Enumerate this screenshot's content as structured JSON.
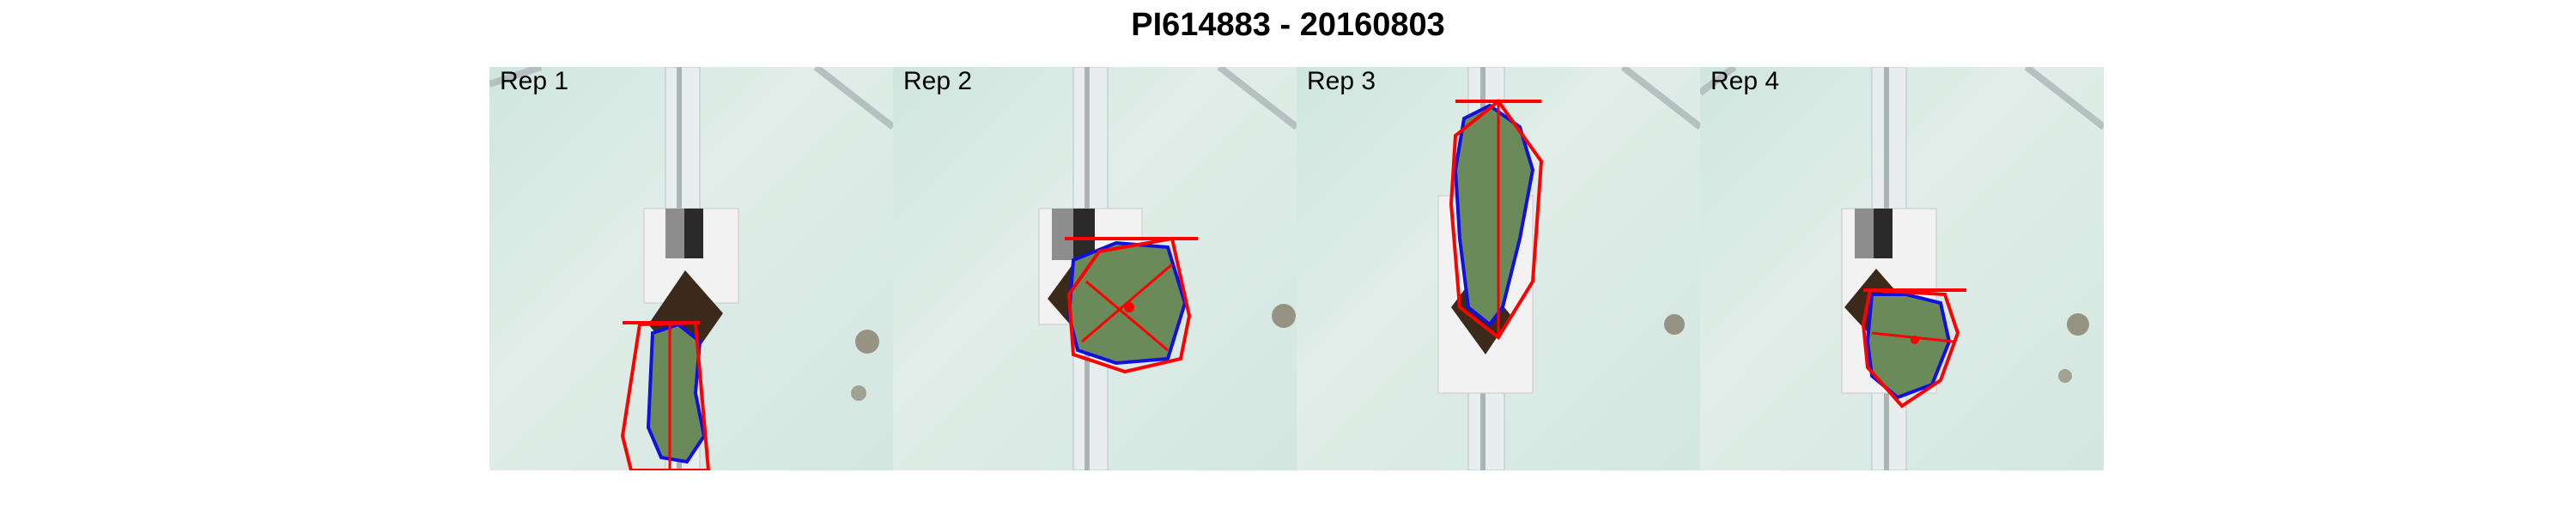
{
  "title": "PI614883 - 20160803",
  "panels": [
    {
      "label": "Rep 1"
    },
    {
      "label": "Rep 2"
    },
    {
      "label": "Rep 3"
    },
    {
      "label": "Rep 4"
    }
  ],
  "colors": {
    "background": "#ffffff",
    "hull_outline": "#ff0000",
    "plant_outline": "#1010e0",
    "plant_fill": "#6a8a5a",
    "soil": "#3b2a1a",
    "floor": "#d6e9e3"
  }
}
